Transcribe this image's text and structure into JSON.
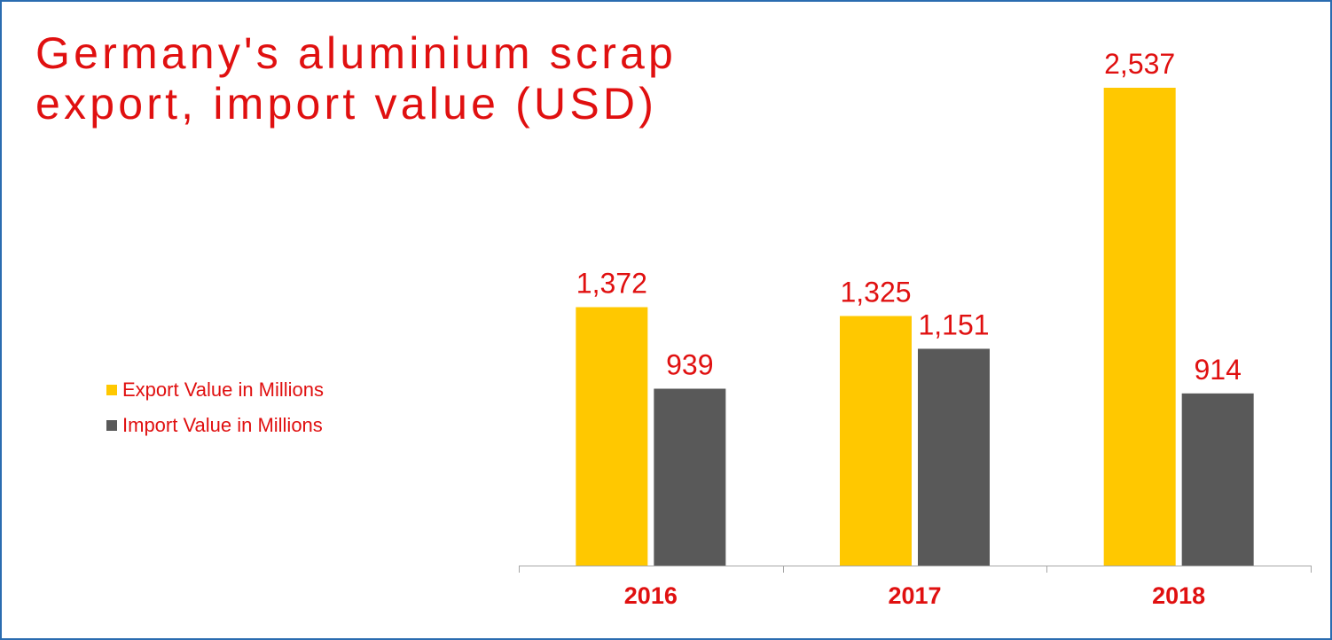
{
  "chart_data": {
    "type": "bar",
    "title_lines": [
      "Germany's aluminium scrap",
      "export, import value (USD)"
    ],
    "categories": [
      "2016",
      "2017",
      "2018"
    ],
    "series": [
      {
        "name": "Export Value in Millions",
        "values": [
          1372,
          1325,
          2537
        ],
        "labels": [
          "1,372",
          "1,325",
          "2,537"
        ],
        "color": "#ffc800"
      },
      {
        "name": "Import Value in Millions",
        "values": [
          939,
          1151,
          914
        ],
        "labels": [
          "939",
          "1,151",
          "914"
        ],
        "color": "#595959"
      }
    ],
    "ylim": [
      0,
      2537
    ],
    "grid": false,
    "legend_position": "left",
    "label_color": "#e01010",
    "axis_color": "#a6a6a6",
    "frame_color": "#2a6cb0"
  }
}
